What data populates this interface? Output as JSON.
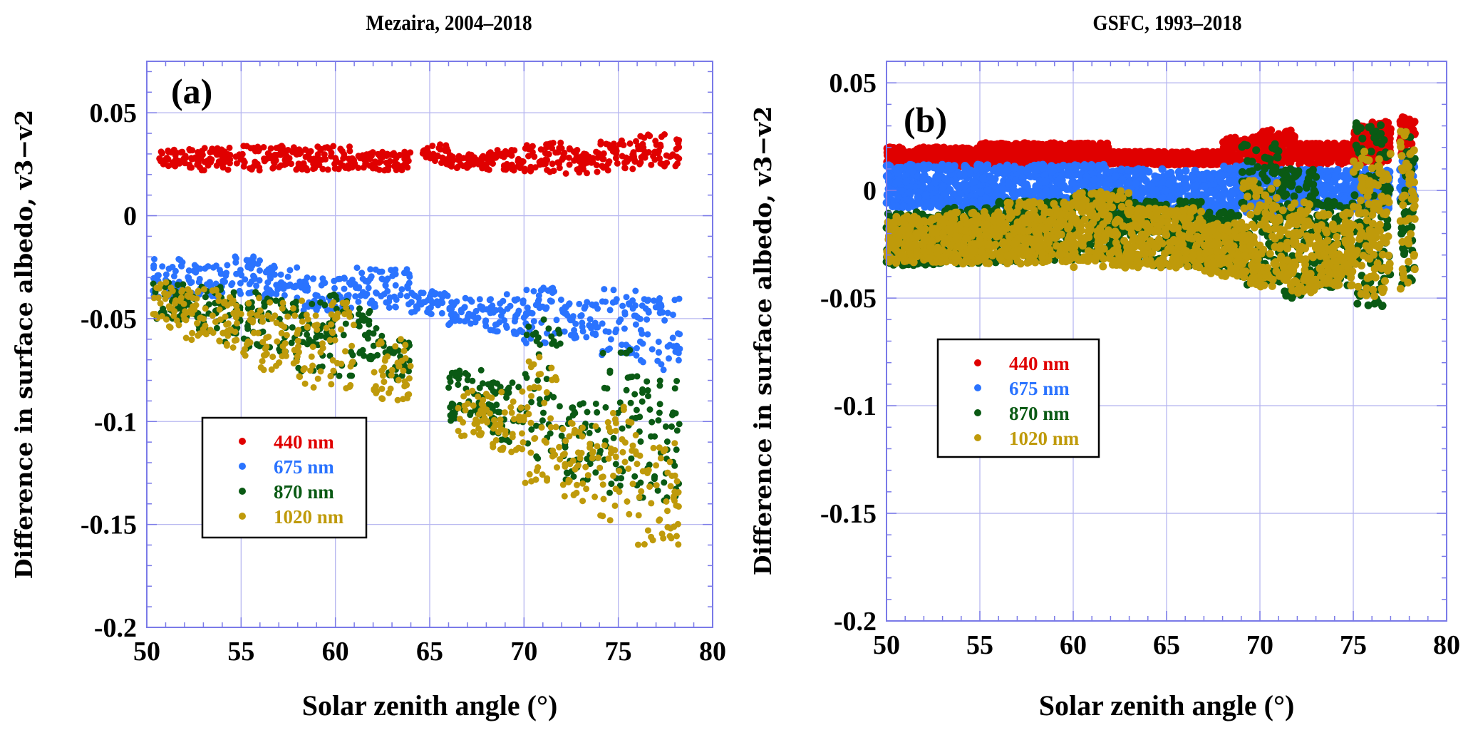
{
  "figure": {
    "panels": [
      {
        "tag": "(a)",
        "title": "Mezaira, 2004–2018"
      },
      {
        "tag": "(b)",
        "title": "GSFC, 1993–2018"
      }
    ]
  },
  "chart_data": [
    {
      "type": "scatter",
      "panel": "(a)",
      "title": "Mezaira, 2004–2018",
      "xlabel": "Solar zenith angle (°)",
      "ylabel": "Difference in surface albedo, v3−v2",
      "xlim": [
        50,
        80
      ],
      "ylim": [
        -0.2,
        0.075
      ],
      "xticks": [
        50,
        55,
        60,
        65,
        70,
        75,
        80
      ],
      "xtick_labels": [
        "50",
        "55",
        "60",
        "65",
        "70",
        "75",
        "80"
      ],
      "yticks": [
        -0.2,
        -0.15,
        -0.1,
        -0.05,
        0,
        0.05
      ],
      "ytick_labels": [
        "-0.2",
        "-0.15",
        "-0.1",
        "-0.05",
        "0",
        "0.05"
      ],
      "grid": true,
      "legend_position": "lower-left",
      "series": [
        {
          "name": "440 nm",
          "color": "#e00000",
          "clusters": [
            [
              50.5,
              52,
              0.024,
              0.032
            ],
            [
              52,
              55,
              0.022,
              0.033
            ],
            [
              55,
              58,
              0.022,
              0.034
            ],
            [
              58,
              61,
              0.022,
              0.034
            ],
            [
              61,
              64,
              0.022,
              0.031
            ],
            [
              64.5,
              66,
              0.025,
              0.035
            ],
            [
              66,
              68,
              0.023,
              0.03
            ],
            [
              68,
              70,
              0.022,
              0.033
            ],
            [
              70,
              72,
              0.021,
              0.036
            ],
            [
              72,
              74,
              0.02,
              0.033
            ],
            [
              74,
              76,
              0.022,
              0.037
            ],
            [
              76,
              78.3,
              0.024,
              0.04
            ]
          ]
        },
        {
          "name": "675 nm",
          "color": "#2a73ff",
          "clusters": [
            [
              50.3,
              52,
              -0.04,
              -0.02
            ],
            [
              52,
              54,
              -0.04,
              -0.024
            ],
            [
              54,
              56,
              -0.038,
              -0.018
            ],
            [
              56,
              58,
              -0.04,
              -0.023
            ],
            [
              58,
              61,
              -0.046,
              -0.03
            ],
            [
              61,
              64,
              -0.045,
              -0.025
            ],
            [
              64,
              66,
              -0.048,
              -0.036
            ],
            [
              66,
              68,
              -0.055,
              -0.04
            ],
            [
              68,
              70,
              -0.058,
              -0.038
            ],
            [
              70,
              72,
              -0.062,
              -0.035
            ],
            [
              72,
              74,
              -0.06,
              -0.042
            ],
            [
              74,
              76,
              -0.068,
              -0.035
            ],
            [
              76,
              78.3,
              -0.075,
              -0.04
            ]
          ]
        },
        {
          "name": "870 nm",
          "color": "#0a5a14",
          "clusters": [
            [
              50.3,
              52,
              -0.052,
              -0.03
            ],
            [
              52,
              54,
              -0.058,
              -0.034
            ],
            [
              54,
              56,
              -0.065,
              -0.036
            ],
            [
              56,
              58,
              -0.07,
              -0.04
            ],
            [
              58,
              61,
              -0.078,
              -0.038
            ],
            [
              61,
              62.5,
              -0.07,
              -0.045
            ],
            [
              62.5,
              64,
              -0.08,
              -0.06
            ],
            [
              66,
              68,
              -0.1,
              -0.075
            ],
            [
              68,
              70,
              -0.11,
              -0.08
            ],
            [
              70,
              72,
              -0.12,
              -0.05
            ],
            [
              72,
              74,
              -0.13,
              -0.09
            ],
            [
              74,
              76,
              -0.135,
              -0.065
            ],
            [
              76,
              78.3,
              -0.14,
              -0.08
            ]
          ]
        },
        {
          "name": "1020 nm",
          "color": "#bf9a0a",
          "clusters": [
            [
              50.3,
              52,
              -0.055,
              -0.032
            ],
            [
              52,
              54,
              -0.062,
              -0.035
            ],
            [
              54,
              56,
              -0.068,
              -0.038
            ],
            [
              56,
              58,
              -0.075,
              -0.042
            ],
            [
              58,
              61,
              -0.085,
              -0.04
            ],
            [
              62,
              64,
              -0.09,
              -0.06
            ],
            [
              66.5,
              68,
              -0.11,
              -0.085
            ],
            [
              68,
              70,
              -0.115,
              -0.085
            ],
            [
              70,
              72,
              -0.13,
              -0.065
            ],
            [
              72,
              74,
              -0.14,
              -0.1
            ],
            [
              74,
              76,
              -0.15,
              -0.09
            ],
            [
              76,
              78.3,
              -0.16,
              -0.11
            ]
          ]
        }
      ]
    },
    {
      "type": "scatter",
      "panel": "(b)",
      "title": "GSFC, 1993–2018",
      "xlabel": "Solar zenith angle (°)",
      "ylabel": "Difference in surface albedo, v3−v2",
      "xlim": [
        50,
        80
      ],
      "ylim": [
        -0.2,
        0.06
      ],
      "xticks": [
        50,
        55,
        60,
        65,
        70,
        75,
        80
      ],
      "xtick_labels": [
        "50",
        "55",
        "60",
        "65",
        "70",
        "75",
        "80"
      ],
      "yticks": [
        -0.2,
        -0.15,
        -0.1,
        -0.05,
        0,
        0.05
      ],
      "ytick_labels": [
        "-0.2",
        "-0.15",
        "-0.1",
        "-0.05",
        "0",
        "0.05"
      ],
      "grid": true,
      "legend_position": "center-left",
      "series": [
        {
          "name": "440 nm",
          "color": "#e00000",
          "clusters": [
            [
              50,
              55,
              0.011,
              0.02
            ],
            [
              55,
              62,
              0.012,
              0.022
            ],
            [
              62,
              68,
              0.012,
              0.018
            ],
            [
              68,
              70,
              0.012,
              0.025
            ],
            [
              70,
              72,
              0.012,
              0.028
            ],
            [
              72,
              75,
              0.012,
              0.022
            ],
            [
              75,
              77,
              0.013,
              0.032
            ],
            [
              77.5,
              78.3,
              0.015,
              0.034
            ]
          ]
        },
        {
          "name": "675 nm",
          "color": "#2a73ff",
          "clusters": [
            [
              50,
              55,
              -0.008,
              0.012
            ],
            [
              55,
              62,
              -0.008,
              0.012
            ],
            [
              62,
              68,
              -0.01,
              0.01
            ],
            [
              68,
              70,
              -0.01,
              0.012
            ],
            [
              70,
              72,
              -0.012,
              0.01
            ],
            [
              72,
              75,
              -0.008,
              0.01
            ],
            [
              75,
              77,
              -0.01,
              0.01
            ],
            [
              77.5,
              78.3,
              -0.005,
              0.015
            ]
          ]
        },
        {
          "name": "870 nm",
          "color": "#0a5a14",
          "clusters": [
            [
              50,
              53,
              -0.035,
              -0.01
            ],
            [
              53,
              56,
              -0.034,
              -0.008
            ],
            [
              56,
              60,
              -0.033,
              -0.005
            ],
            [
              60,
              63,
              -0.032,
              0.0
            ],
            [
              63,
              67,
              -0.035,
              -0.005
            ],
            [
              67,
              69,
              -0.038,
              -0.01
            ],
            [
              69,
              71,
              -0.045,
              0.022
            ],
            [
              71,
              73,
              -0.05,
              0.01
            ],
            [
              73,
              75,
              -0.045,
              -0.005
            ],
            [
              75,
              77,
              -0.055,
              0.033
            ],
            [
              77.5,
              78.3,
              -0.045,
              0.03
            ]
          ]
        },
        {
          "name": "1020 nm",
          "color": "#bf9a0a",
          "clusters": [
            [
              50,
              53,
              -0.034,
              -0.012
            ],
            [
              53,
              56,
              -0.034,
              -0.01
            ],
            [
              56,
              60,
              -0.034,
              -0.005
            ],
            [
              60,
              63,
              -0.036,
              0.0
            ],
            [
              63,
              67,
              -0.036,
              -0.008
            ],
            [
              67,
              69,
              -0.04,
              -0.015
            ],
            [
              69,
              71,
              -0.045,
              0.005
            ],
            [
              71,
              73,
              -0.048,
              -0.005
            ],
            [
              73,
              75,
              -0.045,
              -0.01
            ],
            [
              75,
              77,
              -0.05,
              0.018
            ],
            [
              77.5,
              78.3,
              -0.048,
              0.03
            ]
          ]
        }
      ]
    }
  ]
}
